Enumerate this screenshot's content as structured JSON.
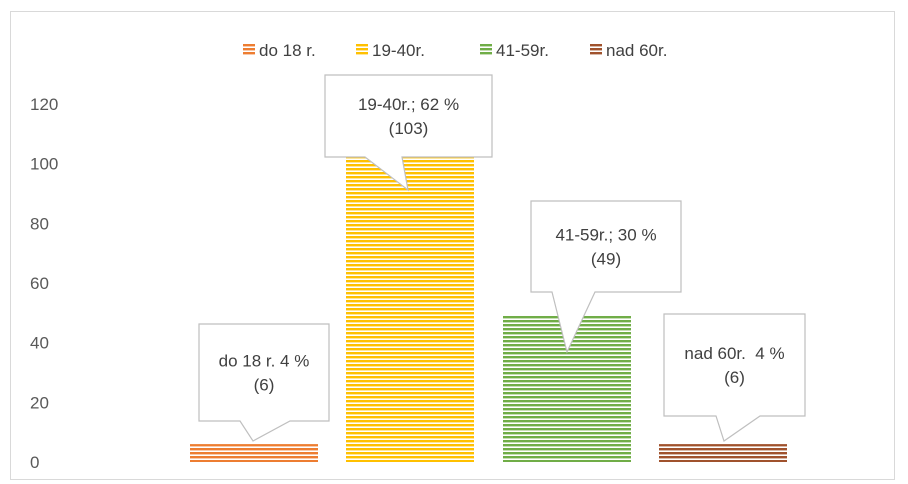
{
  "chart_data": {
    "type": "bar",
    "categories": [
      "do 18 r.",
      "19-40r.",
      "41-59r.",
      "nad 60r."
    ],
    "values": [
      6,
      103,
      49,
      6
    ],
    "colors": [
      "#ED7D31",
      "#FFC000",
      "#70AD47",
      "#A0522D"
    ],
    "data_labels": [
      [
        "do 18 r. 4 %",
        "(6)"
      ],
      [
        "19-40r.; 62 %",
        "(103)"
      ],
      [
        "41-59r.; 30 %",
        "(49)"
      ],
      [
        "nad 60r.  4 %",
        "(6)"
      ]
    ],
    "legend": {
      "position": "top",
      "entries": [
        "do 18 r.",
        "19-40r.",
        "41-59r.",
        "nad 60r."
      ]
    },
    "y_ticks": [
      "0",
      "20",
      "40",
      "60",
      "80",
      "100",
      "120"
    ],
    "ylim": [
      0,
      120
    ],
    "grid": false,
    "bar_pattern": "horizontal-stripes"
  }
}
